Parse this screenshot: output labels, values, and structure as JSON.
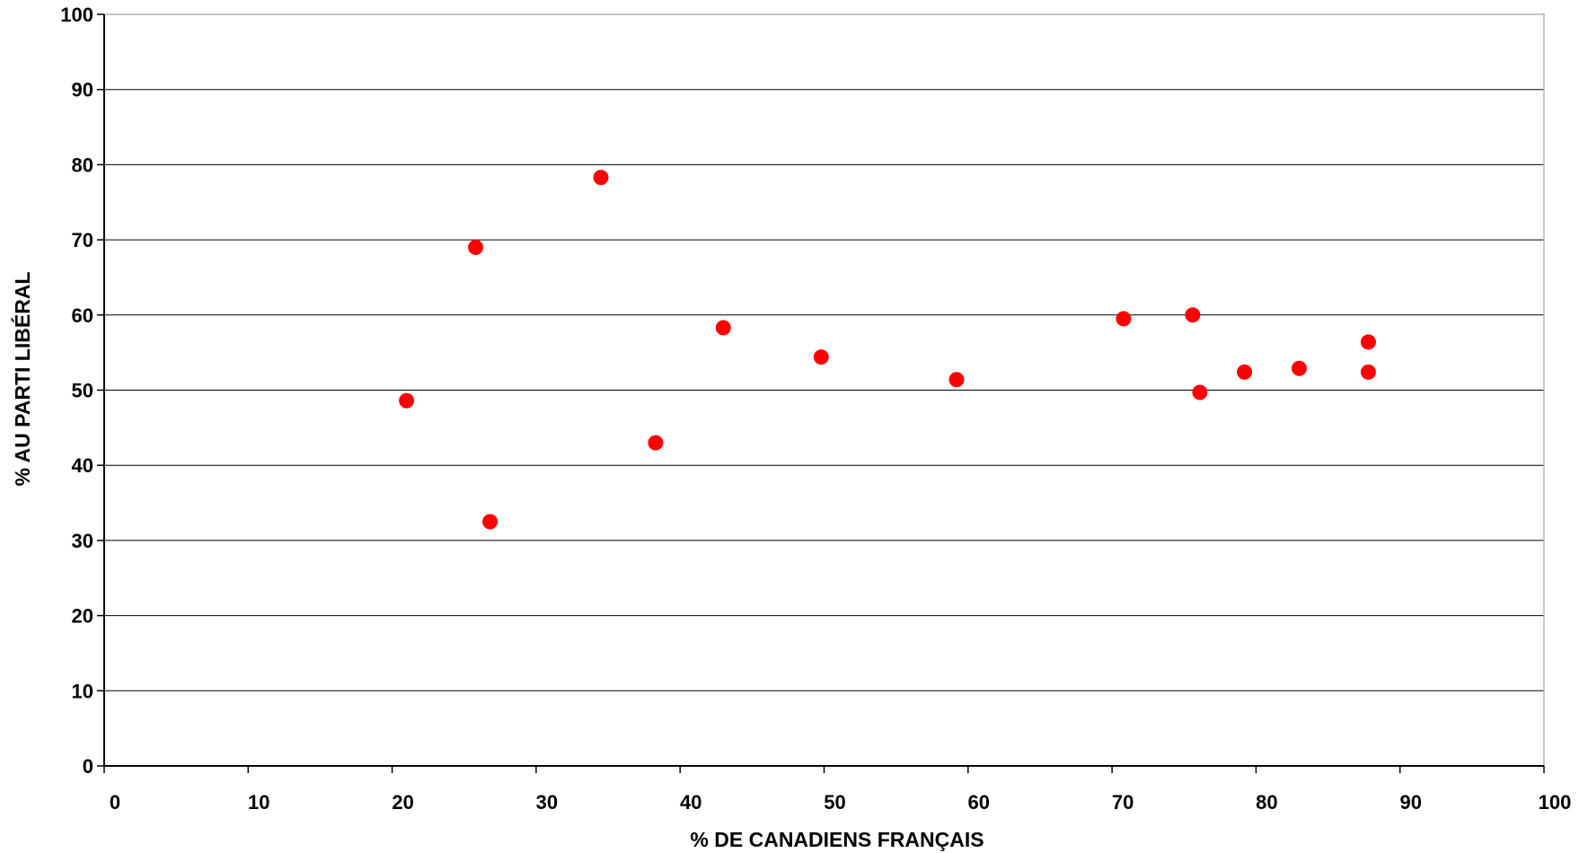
{
  "chart_data": {
    "type": "scatter",
    "title": "",
    "xlabel": "% DE CANADIENS FRANÇAIS",
    "ylabel": "% AU PARTI LIBÉRAL",
    "xlim": [
      0,
      100
    ],
    "ylim": [
      0,
      100
    ],
    "x_ticks": [
      "0",
      "10",
      "20",
      "30",
      "40",
      "50",
      "60",
      "70",
      "80",
      "90",
      "100"
    ],
    "y_ticks": [
      "0",
      "10",
      "20",
      "30",
      "40",
      "50",
      "60",
      "70",
      "80",
      "90",
      "100"
    ],
    "grid": "horizontal",
    "legend": "none",
    "marker_color": "#ff0000",
    "points": [
      {
        "x": 21.0,
        "y": 48.6
      },
      {
        "x": 25.8,
        "y": 69.0
      },
      {
        "x": 26.8,
        "y": 32.5
      },
      {
        "x": 34.5,
        "y": 78.3
      },
      {
        "x": 38.3,
        "y": 43.0
      },
      {
        "x": 43.0,
        "y": 58.3
      },
      {
        "x": 49.8,
        "y": 54.4
      },
      {
        "x": 59.2,
        "y": 51.4
      },
      {
        "x": 70.8,
        "y": 59.5
      },
      {
        "x": 75.6,
        "y": 60.0
      },
      {
        "x": 76.1,
        "y": 49.7
      },
      {
        "x": 79.2,
        "y": 52.4
      },
      {
        "x": 83.0,
        "y": 52.9
      },
      {
        "x": 87.8,
        "y": 56.4
      },
      {
        "x": 87.8,
        "y": 52.4
      }
    ]
  }
}
